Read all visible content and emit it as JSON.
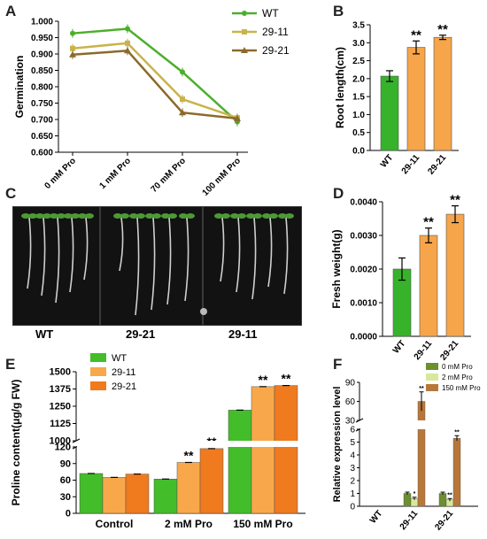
{
  "panels": {
    "a": "A",
    "b": "B",
    "c": "C",
    "d": "D",
    "e": "E",
    "f": "F"
  },
  "chart_data": [
    {
      "panel": "A",
      "type": "line",
      "ylabel": "Germination",
      "categories": [
        "0 mM Pro",
        "1 mM Pro",
        "70 mM Pro",
        "100 mM Pro"
      ],
      "ylim": [
        0.6,
        1.0
      ],
      "yticks": [
        "0.600",
        "0.650",
        "0.700",
        "0.750",
        "0.800",
        "0.850",
        "0.900",
        "0.950",
        "1.000"
      ],
      "series": [
        {
          "name": "WT",
          "color": "#4caf2c",
          "marker": "circle",
          "values": [
            0.963,
            0.977,
            0.845,
            0.693
          ]
        },
        {
          "name": "29-11",
          "color": "#c8b44a",
          "marker": "square",
          "values": [
            0.917,
            0.933,
            0.762,
            0.705
          ]
        },
        {
          "name": "29-21",
          "color": "#8b6a2a",
          "marker": "triangle",
          "values": [
            0.898,
            0.91,
            0.721,
            0.703
          ]
        }
      ]
    },
    {
      "panel": "B",
      "type": "bar",
      "ylabel": "Root length(cm)",
      "categories": [
        "WT",
        "29-11",
        "29-21"
      ],
      "values": [
        2.07,
        2.87,
        3.15
      ],
      "errors": [
        0.15,
        0.18,
        0.06
      ],
      "sig": [
        "",
        "**",
        "**"
      ],
      "colors": [
        "#37b22b",
        "#f6a54a",
        "#f6a54a"
      ],
      "ylim": [
        0,
        3.5
      ],
      "yticks": [
        "0.0",
        "0.5",
        "1.0",
        "1.5",
        "2.0",
        "2.5",
        "3.0",
        "3.5"
      ]
    },
    {
      "panel": "D",
      "type": "bar",
      "ylabel": "Fresh weight(g)",
      "categories": [
        "WT",
        "29-11",
        "29-21"
      ],
      "values": [
        0.002,
        0.003,
        0.00363
      ],
      "errors": [
        0.00033,
        0.00022,
        0.00025
      ],
      "sig": [
        "",
        "**",
        "**"
      ],
      "colors": [
        "#37b22b",
        "#f6a54a",
        "#f6a54a"
      ],
      "ylim": [
        0,
        0.004
      ],
      "yticks": [
        "0.0000",
        "0.0010",
        "0.0020",
        "0.0030",
        "0.0040"
      ]
    },
    {
      "panel": "E",
      "type": "bar",
      "ylabel": "Proline content(μg/g FW)",
      "categories": [
        "Control",
        "2 mM Pro",
        "150 mM Pro"
      ],
      "yticks_low": [
        "0",
        "30",
        "60",
        "90",
        "120"
      ],
      "yticks_high": [
        "1000",
        "1125",
        "1250",
        "1375",
        "1500"
      ],
      "series": [
        {
          "name": "WT",
          "color": "#43bd2a",
          "values": [
            72,
            62,
            1222
          ],
          "errors": [
            2,
            2,
            5
          ]
        },
        {
          "name": "29-11",
          "color": "#f8a84a",
          "values": [
            65,
            92,
            1392
          ],
          "errors": [
            3,
            4,
            5
          ]
        },
        {
          "name": "29-21",
          "color": "#f07a1e",
          "values": [
            71,
            117,
            1400
          ],
          "errors": [
            2,
            2,
            5
          ]
        }
      ],
      "sig": [
        [
          "",
          "",
          ""
        ],
        [
          "",
          "**",
          "**"
        ],
        [
          "",
          "**",
          "**"
        ]
      ]
    },
    {
      "panel": "F",
      "type": "bar",
      "ylabel": "Relative expression level",
      "categories": [
        "WT",
        "29-11",
        "29-21"
      ],
      "yticks_low": [
        "0",
        "1",
        "2",
        "3",
        "4",
        "5",
        "6"
      ],
      "yticks_high": [
        "30",
        "60",
        "90"
      ],
      "series": [
        {
          "name": "0 mM Pro",
          "color": "#6c8f2f",
          "values": [
            0,
            1.0,
            1.0
          ],
          "errors": [
            0,
            0.1,
            0.1
          ]
        },
        {
          "name": "2 mM Pro",
          "color": "#d8e89a",
          "values": [
            0,
            0.6,
            0.5
          ],
          "errors": [
            0,
            0.1,
            0.1
          ]
        },
        {
          "name": "150 mM Pro",
          "color": "#b8773a",
          "values": [
            0,
            60,
            5.3
          ],
          "errors": [
            0,
            15,
            0.2
          ]
        }
      ],
      "sig": [
        [
          "",
          "",
          ""
        ],
        [
          "",
          "*",
          "**"
        ],
        [
          "",
          "**",
          "**"
        ]
      ]
    }
  ],
  "photo": {
    "labels": [
      "WT",
      "29-21",
      "29-11"
    ]
  }
}
